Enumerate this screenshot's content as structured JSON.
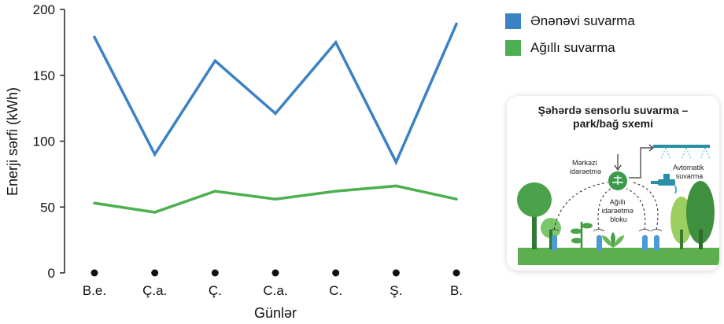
{
  "chart_data": {
    "type": "line",
    "categories": [
      "B.e.",
      "Ç.a.",
      "Ç.",
      "C.a.",
      "C.",
      "Ş.",
      "B."
    ],
    "series": [
      {
        "name": "Ənənəvi suvarma",
        "color": "#3b82c4",
        "values": [
          179,
          90,
          161,
          121,
          175,
          84,
          189
        ]
      },
      {
        "name": "Ağıllı suvarma",
        "color": "#4caf50",
        "values": [
          53,
          46,
          62,
          56,
          62,
          66,
          56
        ]
      }
    ],
    "xlabel": "Günlər",
    "ylabel": "Enerji sərfi (kWh)",
    "ylim": [
      0,
      200
    ],
    "yticks": [
      0,
      50,
      100,
      150,
      200
    ],
    "grid": false,
    "legend_position": "top-right"
  },
  "inset": {
    "title": "Şəhərdə sensorlu suvarma – park/bağ sxemi",
    "central_label": "Mərkəzi idarəetmə",
    "block_label": "Ağıllı idarəetmə bloku",
    "auto_label": "Avtomatik suvarma"
  }
}
